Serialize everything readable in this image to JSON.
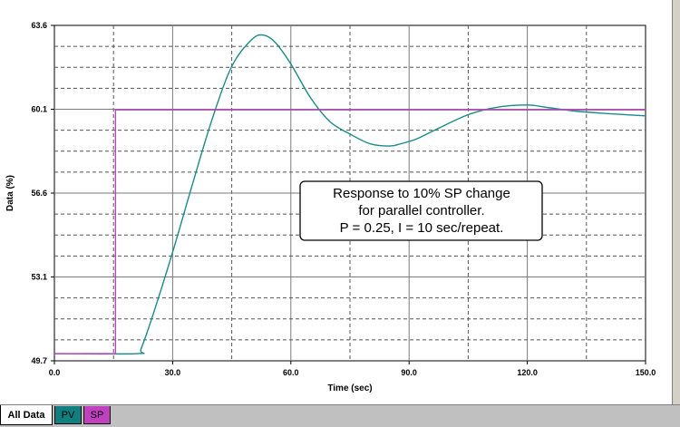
{
  "chart_data": {
    "type": "line",
    "xlabel": "Time (sec)",
    "ylabel": "Data (%)",
    "xlim": [
      0,
      150
    ],
    "ylim": [
      49.7,
      63.6
    ],
    "x_ticks": [
      "0.0",
      "30.0",
      "60.0",
      "90.0",
      "120.0",
      "150.0"
    ],
    "y_ticks": [
      "49.7",
      "53.1",
      "56.6",
      "60.1",
      "63.6"
    ],
    "grid": true,
    "annotation": [
      "Response to 10% SP change",
      "for parallel controller.",
      "P = 0.25, I = 10 sec/repeat."
    ],
    "series": [
      {
        "name": "PV",
        "color": "#1a8a8a",
        "x": [
          0,
          21,
          22,
          25,
          30,
          35,
          40,
          45,
          50,
          53,
          56,
          60,
          65,
          70,
          75,
          80,
          85,
          88,
          92,
          97,
          105,
          112,
          120,
          125,
          132,
          140,
          150
        ],
        "y": [
          50.0,
          50.0,
          50.2,
          51.6,
          54.2,
          57.0,
          59.7,
          61.9,
          63.0,
          63.2,
          62.9,
          62.0,
          60.6,
          59.6,
          59.1,
          58.7,
          58.6,
          58.7,
          58.9,
          59.3,
          59.9,
          60.2,
          60.3,
          60.2,
          60.05,
          59.95,
          59.85
        ]
      },
      {
        "name": "SP",
        "color": "#c040c0",
        "x": [
          0,
          15.5,
          15.5,
          150
        ],
        "y": [
          50.0,
          50.0,
          60.1,
          60.1
        ]
      }
    ]
  },
  "tabs": {
    "all_label": "All Data",
    "pv_label": "PV",
    "sp_label": "SP",
    "pv_color": "#0e8080",
    "sp_color": "#c040c0"
  }
}
